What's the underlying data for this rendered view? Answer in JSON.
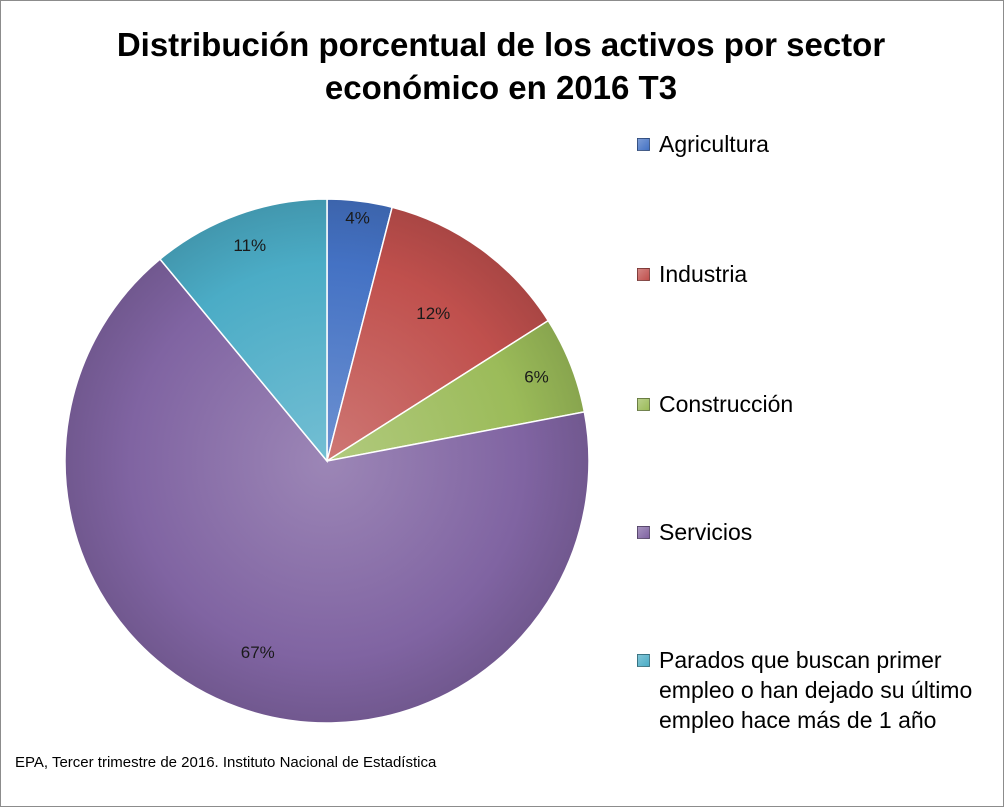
{
  "chart_data": {
    "type": "pie",
    "title": "Distribución porcentual de los activos por sector económico en 2016 T3",
    "categories": [
      "Agricultura",
      "Industria",
      "Construcción",
      "Servicios",
      "Parados que buscan primer empleo o han dejado su último empleo hace más de 1 año"
    ],
    "values": [
      4,
      12,
      6,
      67,
      11
    ],
    "data_labels": [
      "4%",
      "12%",
      "6%",
      "67%",
      "11%"
    ],
    "colors": [
      "#4472C4",
      "#C0504D",
      "#9BBB59",
      "#8064A2",
      "#4BACC6"
    ],
    "legend_position": "right",
    "source": "EPA, Tercer trimestre de 2016. Instituto Nacional de Estadística"
  }
}
